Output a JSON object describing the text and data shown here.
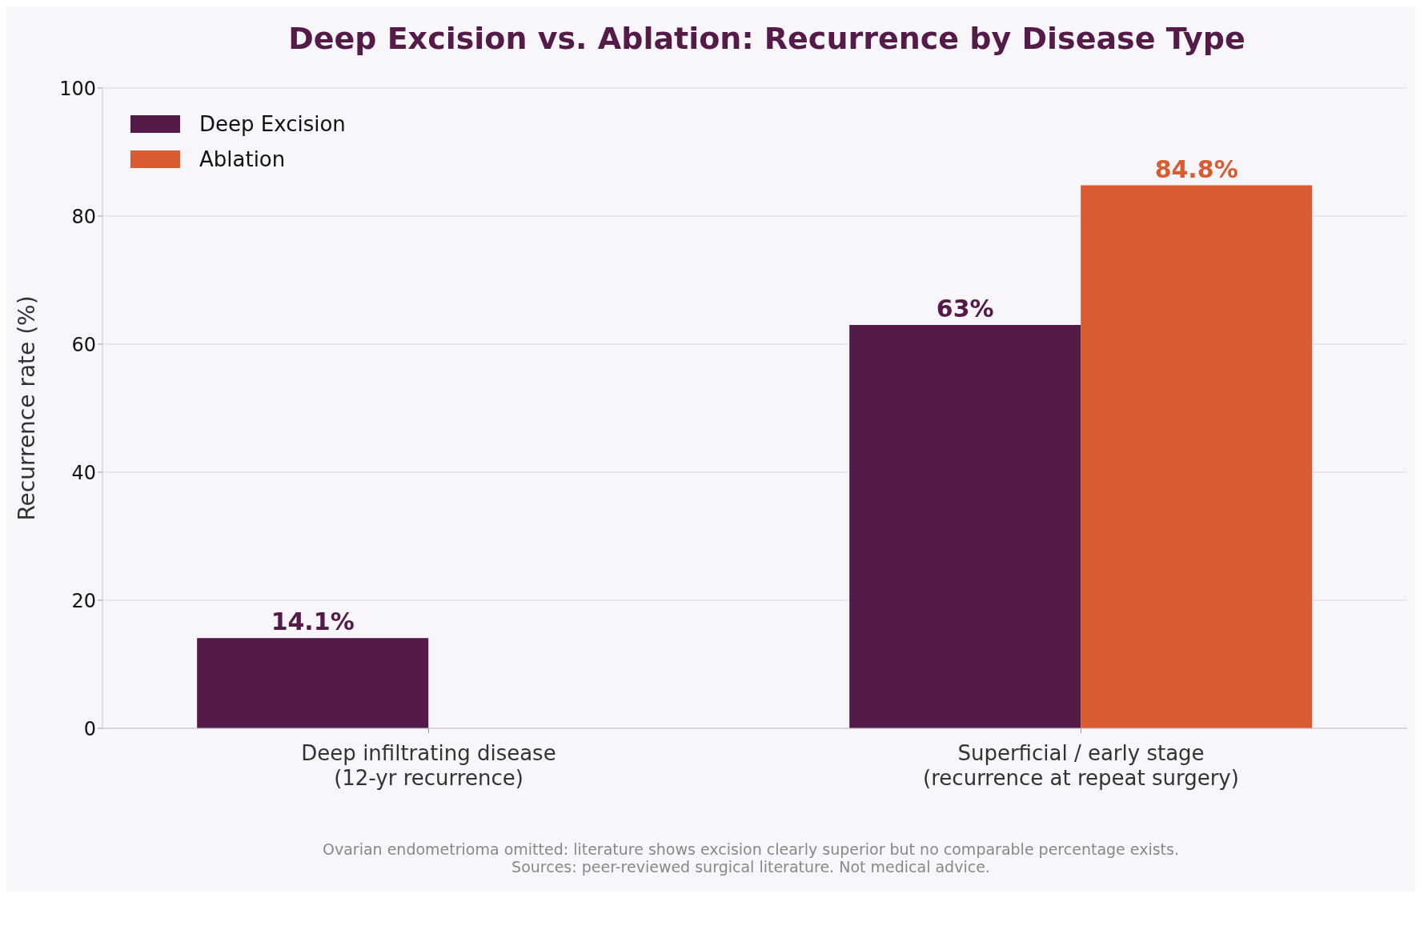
{
  "chart_data": {
    "type": "bar",
    "title": "Deep Excision vs. Ablation: Recurrence by Disease Type",
    "ylabel": "Recurrence rate (%)",
    "categories": [
      "Deep infiltrating disease\n(12-yr recurrence)",
      "Superficial / early stage\n(recurrence at repeat surgery)"
    ],
    "series": [
      {
        "name": "Deep Excision",
        "color": "#541a48",
        "values": [
          14.1,
          63
        ],
        "value_labels": [
          "14.1%",
          "63%"
        ]
      },
      {
        "name": "Ablation",
        "color": "#d95b32",
        "values": [
          null,
          84.8
        ],
        "value_labels": [
          null,
          "84.8%"
        ]
      }
    ],
    "ylim": [
      0,
      100
    ],
    "yticks": [
      0,
      20,
      40,
      60,
      80,
      100
    ],
    "grid": "y",
    "legend": "top left",
    "annotations": [
      "Ovarian endometrioma omitted: literature shows excision clearly superior but no comparable percentage exists.",
      "Sources: peer-reviewed surgical literature. Not medical advice."
    ]
  }
}
